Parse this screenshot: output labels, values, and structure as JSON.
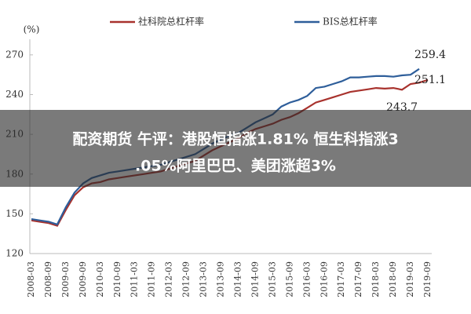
{
  "chart_data": {
    "type": "line",
    "y_label": "(%)",
    "categories": [
      "2008-03",
      null,
      "2008-09",
      null,
      "2009-03",
      null,
      "2009-09",
      null,
      "2010-03",
      null,
      "2010-09",
      null,
      "2011-03",
      null,
      "2011-09",
      null,
      "2012-03",
      null,
      "2012-09",
      null,
      "2013-03",
      null,
      "2013-09",
      null,
      "2014-03",
      null,
      "2014-09",
      null,
      "2015-03",
      null,
      "2015-09",
      null,
      "2016-03",
      null,
      "2016-09",
      null,
      "2017-03",
      null,
      "2017-09",
      null,
      "2018-03",
      null,
      "2018-09",
      null,
      "2019-03",
      null,
      "2019-09"
    ],
    "series": [
      {
        "name": "社科院总杠杆率",
        "color": "#a8322d",
        "values": [
          145,
          144,
          143,
          141,
          153,
          164,
          170,
          173,
          174,
          176,
          177,
          178,
          179,
          180,
          181,
          182,
          184,
          186,
          188,
          190,
          194,
          198,
          201,
          204,
          207,
          211,
          214,
          216,
          218,
          221,
          223,
          226,
          230,
          234,
          236,
          238,
          240,
          242,
          243,
          244,
          245,
          244.5,
          245,
          243.7,
          248,
          249,
          251.1
        ]
      },
      {
        "name": "BIS总杠杆率",
        "color": "#2e5e9a",
        "values": [
          146,
          145,
          144,
          142,
          155,
          166,
          173,
          177,
          179,
          181,
          182,
          183,
          184,
          185,
          186,
          187,
          189,
          191,
          193,
          195,
          199,
          203,
          206,
          209,
          211,
          215,
          219,
          222,
          225,
          231,
          234,
          236,
          239,
          245,
          246,
          248,
          250,
          253,
          253,
          253.5,
          254,
          254,
          253.5,
          254.5,
          255,
          259.4,
          null
        ]
      }
    ],
    "annotations": [
      "259.4",
      "251.1",
      "243.7"
    ],
    "ylim": [
      120,
      280
    ],
    "yticks": [
      120,
      150,
      180,
      210,
      240,
      270
    ],
    "grid": false
  },
  "overlay": {
    "lines": [
      "配资期货 午评：港股恒指涨1.81% 恒生科指涨3",
      ".05%阿里巴巴、美团涨超3%"
    ]
  }
}
